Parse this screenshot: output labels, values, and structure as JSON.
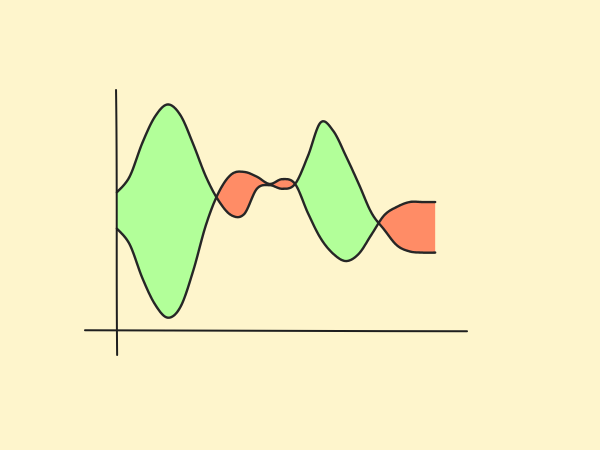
{
  "colors": {
    "background": "#fef5cc",
    "axis": "#1f1f1f",
    "curve": "#262626",
    "fill_positive": "#b2ff99",
    "fill_negative": "#ff8c66"
  },
  "chart_data": {
    "type": "area",
    "title": "",
    "xlabel": "",
    "ylabel": "",
    "grid": false,
    "legend": "none",
    "xlim": [
      -0.5,
      5.5
    ],
    "ylim": [
      -0.2,
      2.0
    ],
    "x": [
      0,
      0.2,
      0.4,
      0.6,
      0.8,
      1.0,
      1.2,
      1.4,
      1.6,
      1.8,
      2.0,
      2.2,
      2.4,
      2.6,
      2.8,
      3.0,
      3.2,
      3.4,
      3.6,
      3.8,
      4.0,
      4.2,
      4.4,
      4.6,
      4.8,
      5.0
    ],
    "series": [
      {
        "values": [
          1.15,
          1.28,
          1.56,
          1.78,
          1.88,
          1.79,
          1.55,
          1.28,
          1.08,
          0.96,
          0.97,
          1.18,
          1.21,
          1.18,
          1.22,
          1.45,
          1.73,
          1.66,
          1.45,
          1.22,
          0.98,
          0.84,
          0.71,
          0.66,
          0.65,
          0.65
        ]
      },
      {
        "values": [
          0.85,
          0.72,
          0.44,
          0.22,
          0.11,
          0.2,
          0.5,
          0.88,
          1.15,
          1.3,
          1.32,
          1.28,
          1.22,
          1.26,
          1.22,
          0.98,
          0.77,
          0.64,
          0.58,
          0.64,
          0.8,
          0.96,
          1.03,
          1.07,
          1.07,
          1.07
        ]
      }
    ]
  }
}
